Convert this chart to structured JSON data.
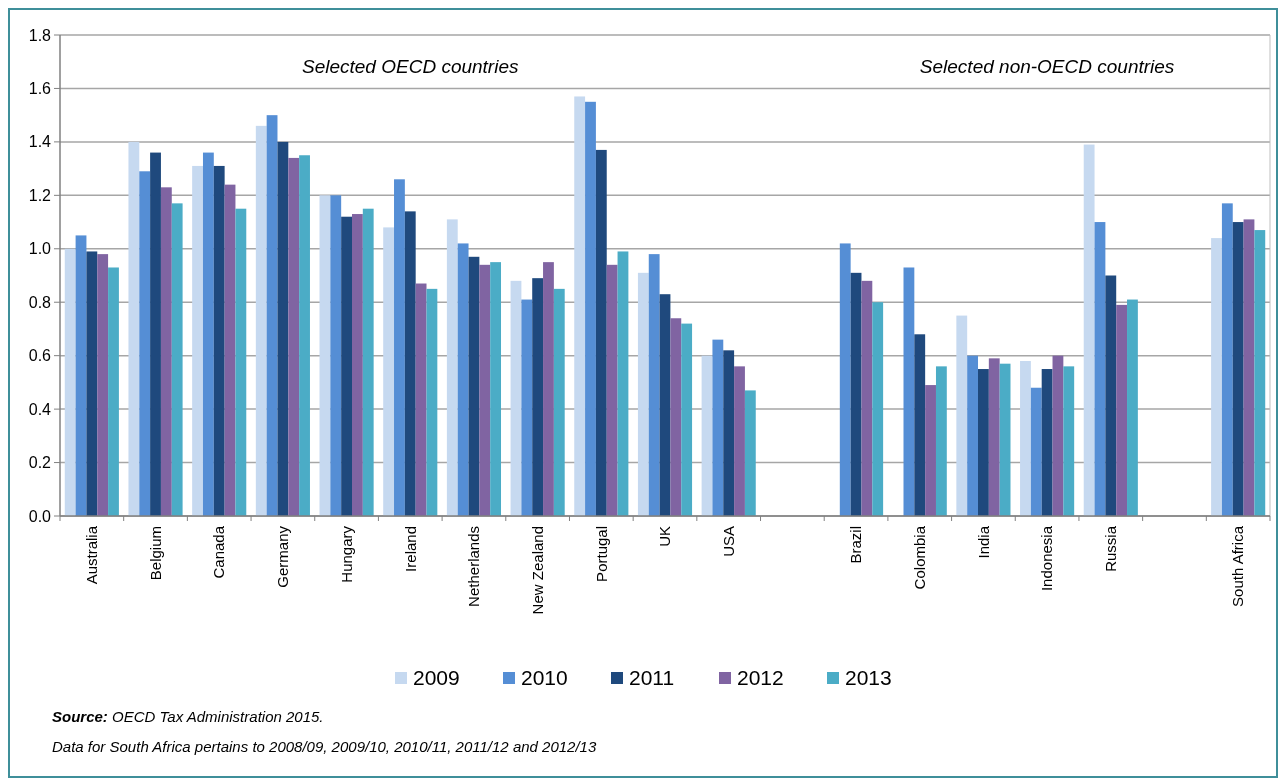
{
  "chart_data": {
    "type": "bar",
    "categories": [
      "Australia",
      "Belgium",
      "Canada",
      "Germany",
      "Hungary",
      "Ireland",
      "Netherlands",
      "New Zealand",
      "Portugal",
      "UK",
      "USA",
      null,
      "Brazil",
      "Colombia",
      "India",
      "Indonesia",
      "Russia",
      null,
      "South Africa"
    ],
    "series": [
      {
        "name": "2009",
        "color": "#c6d9f0",
        "values": [
          1.0,
          1.4,
          1.31,
          1.46,
          1.2,
          1.08,
          1.11,
          0.88,
          1.57,
          0.91,
          0.6,
          null,
          null,
          null,
          0.75,
          0.58,
          1.39,
          null,
          1.04
        ]
      },
      {
        "name": "2010",
        "color": "#558ed5",
        "values": [
          1.05,
          1.29,
          1.36,
          1.5,
          1.2,
          1.26,
          1.02,
          0.81,
          1.55,
          0.98,
          0.66,
          null,
          1.02,
          0.93,
          0.6,
          0.48,
          1.1,
          null,
          1.17
        ]
      },
      {
        "name": "2011",
        "color": "#1f497d",
        "values": [
          0.99,
          1.36,
          1.31,
          1.4,
          1.12,
          1.14,
          0.97,
          0.89,
          1.37,
          0.83,
          0.62,
          null,
          0.91,
          0.68,
          0.55,
          0.55,
          0.9,
          null,
          1.1
        ]
      },
      {
        "name": "2012",
        "color": "#8064a2",
        "values": [
          0.98,
          1.23,
          1.24,
          1.34,
          1.13,
          0.87,
          0.94,
          0.95,
          0.94,
          0.74,
          0.56,
          null,
          0.88,
          0.49,
          0.59,
          0.6,
          0.79,
          null,
          1.11
        ]
      },
      {
        "name": "2013",
        "color": "#4bacc6",
        "values": [
          0.93,
          1.17,
          1.15,
          1.35,
          1.15,
          0.85,
          0.95,
          0.85,
          0.99,
          0.72,
          0.47,
          null,
          0.8,
          0.56,
          0.57,
          0.56,
          0.81,
          null,
          1.07
        ]
      }
    ],
    "ylim": [
      0,
      1.8
    ],
    "yticks": [
      {
        "value": 0,
        "label": "0.0"
      },
      0.2,
      0.4,
      0.6,
      0.8,
      {
        "value": 1,
        "label": "1.0"
      },
      1.2,
      1.4,
      1.6,
      1.8
    ],
    "grid": "y",
    "legend": "bottom",
    "annotations": [
      "Selected OECD countries",
      "Selected non-OECD countries",
      "Source: OECD Tax Administration 2015.",
      "Data for South Africa pertains to 2008/09, 2009/10, 2010/11, 2011/12 and 2012/13"
    ]
  }
}
